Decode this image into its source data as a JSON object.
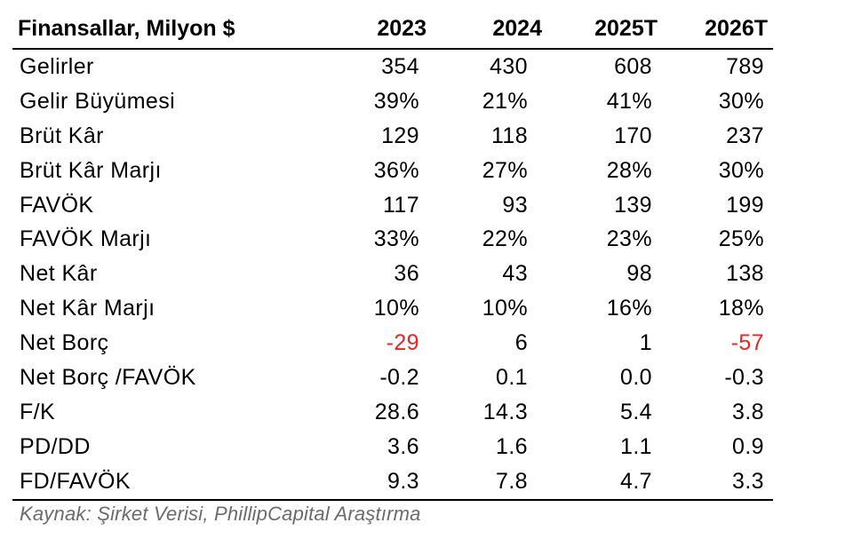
{
  "table": {
    "header_label": "Finansallar, Milyon $",
    "years": [
      "2023",
      "2024",
      "2025T",
      "2026T"
    ],
    "rows": [
      {
        "label": "Gelirler",
        "values": [
          "354",
          "430",
          "608",
          "789"
        ],
        "negative": [
          false,
          false,
          false,
          false
        ]
      },
      {
        "label": "Gelir Büyümesi",
        "values": [
          "39%",
          "21%",
          "41%",
          "30%"
        ],
        "negative": [
          false,
          false,
          false,
          false
        ]
      },
      {
        "label": "Brüt Kâr",
        "values": [
          "129",
          "118",
          "170",
          "237"
        ],
        "negative": [
          false,
          false,
          false,
          false
        ]
      },
      {
        "label": "Brüt Kâr Marjı",
        "values": [
          "36%",
          "27%",
          "28%",
          "30%"
        ],
        "negative": [
          false,
          false,
          false,
          false
        ]
      },
      {
        "label": "FAVÖK",
        "values": [
          "117",
          "93",
          "139",
          "199"
        ],
        "negative": [
          false,
          false,
          false,
          false
        ]
      },
      {
        "label": "FAVÖK Marjı",
        "values": [
          "33%",
          "22%",
          "23%",
          "25%"
        ],
        "negative": [
          false,
          false,
          false,
          false
        ]
      },
      {
        "label": "Net Kâr",
        "values": [
          "36",
          "43",
          "98",
          "138"
        ],
        "negative": [
          false,
          false,
          false,
          false
        ]
      },
      {
        "label": "Net Kâr Marjı",
        "values": [
          "10%",
          "10%",
          "16%",
          "18%"
        ],
        "negative": [
          false,
          false,
          false,
          false
        ]
      },
      {
        "label": "Net Borç",
        "values": [
          "-29",
          "6",
          "1",
          "-57"
        ],
        "negative": [
          true,
          false,
          false,
          true
        ]
      },
      {
        "label": "Net Borç /FAVÖK",
        "values": [
          "-0.2",
          "0.1",
          "0.0",
          "-0.3"
        ],
        "negative": [
          false,
          false,
          false,
          false
        ]
      },
      {
        "label": "F/K",
        "values": [
          "28.6",
          "14.3",
          "5.4",
          "3.8"
        ],
        "negative": [
          false,
          false,
          false,
          false
        ]
      },
      {
        "label": "PD/DD",
        "values": [
          "3.6",
          "1.6",
          "1.1",
          "0.9"
        ],
        "negative": [
          false,
          false,
          false,
          false
        ]
      },
      {
        "label": "FD/FAVÖK",
        "values": [
          "9.3",
          "7.8",
          "4.7",
          "3.3"
        ],
        "negative": [
          false,
          false,
          false,
          false
        ]
      }
    ]
  },
  "source_note": "Kaynak: Şirket Verisi, PhillipCapital Araştırma",
  "colors": {
    "negative_value": "#e8251f",
    "source_text": "#6b6b6b"
  }
}
